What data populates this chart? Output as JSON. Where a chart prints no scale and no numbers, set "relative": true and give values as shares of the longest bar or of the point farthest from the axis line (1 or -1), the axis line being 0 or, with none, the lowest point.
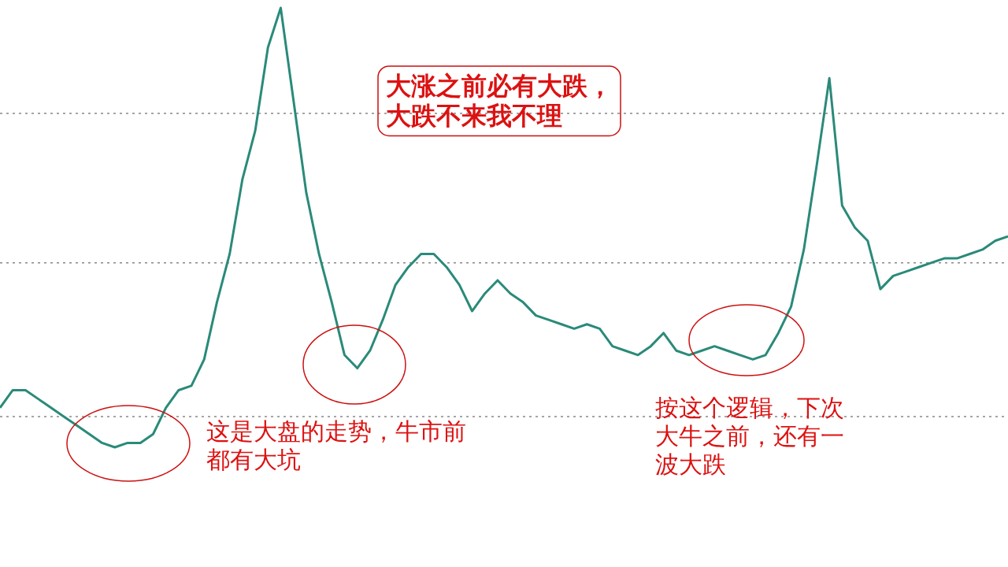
{
  "chart_data": {
    "type": "line",
    "relative": true,
    "line_style": "solid",
    "categories": [
      null,
      null,
      null,
      null,
      null,
      null,
      null,
      null,
      null,
      null,
      null,
      null,
      null,
      null,
      null,
      null,
      null,
      null,
      null,
      null,
      null,
      null,
      null,
      null,
      null,
      null,
      null,
      null,
      null,
      null,
      null,
      null,
      null,
      null,
      null,
      null,
      null,
      null,
      null,
      null,
      null,
      null,
      null,
      null,
      null,
      null,
      null,
      null,
      null,
      null,
      null,
      null,
      null,
      null,
      null,
      null,
      null,
      null,
      null,
      null,
      null,
      null,
      null,
      null,
      null,
      null,
      null,
      null,
      null,
      null,
      null,
      null,
      null,
      null,
      null,
      null,
      null,
      null,
      null,
      null
    ],
    "series": [
      {
        "color": "#2a8a7a",
        "values": [
          0.09,
          0.13,
          0.13,
          0.11,
          0.09,
          0.07,
          0.05,
          0.03,
          0.01,
          0,
          0.01,
          0.01,
          0.03,
          0.09,
          0.13,
          0.14,
          0.2,
          0.33,
          0.44,
          0.61,
          0.72,
          0.91,
          1,
          0.79,
          0.58,
          0.44,
          0.33,
          0.21,
          0.18,
          0.22,
          0.29,
          0.37,
          0.41,
          0.44,
          0.44,
          0.41,
          0.37,
          0.31,
          0.35,
          0.38,
          0.35,
          0.33,
          0.3,
          0.29,
          0.28,
          0.27,
          0.28,
          0.27,
          0.23,
          0.22,
          0.21,
          0.23,
          0.26,
          0.22,
          0.21,
          0.22,
          0.23,
          0.22,
          0.21,
          0.2,
          0.21,
          0.26,
          0.32,
          0.45,
          0.64,
          0.84,
          0.55,
          0.5,
          0.47,
          0.36,
          0.39,
          0.4,
          0.41,
          0.42,
          0.43,
          0.43,
          0.44,
          0.45,
          0.47,
          0.48
        ]
      }
    ],
    "ref_lines": [
      {
        "axis": "y",
        "value": 0.76,
        "color": "#888888",
        "line_style": "dotted"
      },
      {
        "axis": "y",
        "value": 0.42,
        "color": "#888888",
        "line_style": "dotted"
      },
      {
        "axis": "y",
        "value": 0.07,
        "color": "#888888",
        "line_style": "dotted"
      }
    ],
    "annotations": [
      "大涨之前必有大跌，大跌不来我不理",
      "这是大盘的走势，牛市前都有大坑",
      "按这个逻辑，下次大牛之前，还有一波大跌"
    ]
  }
}
